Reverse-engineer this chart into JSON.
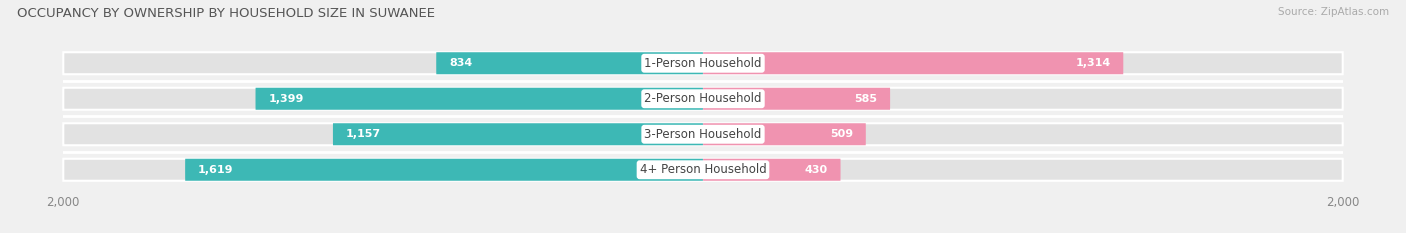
{
  "title": "OCCUPANCY BY OWNERSHIP BY HOUSEHOLD SIZE IN SUWANEE",
  "source": "Source: ZipAtlas.com",
  "categories": [
    "1-Person Household",
    "2-Person Household",
    "3-Person Household",
    "4+ Person Household"
  ],
  "owner_values": [
    834,
    1399,
    1157,
    1619
  ],
  "renter_values": [
    1314,
    585,
    509,
    430
  ],
  "owner_color": "#3db8b5",
  "renter_color": "#f093b0",
  "owner_color_dark": "#2a9d99",
  "renter_color_dark": "#e06090",
  "xlim": 2000,
  "bar_height": 0.62,
  "background_color": "#f0f0f0",
  "row_bg_color": "#e2e2e2",
  "title_fontsize": 9.5,
  "label_fontsize": 8.5,
  "value_fontsize": 8,
  "tick_fontsize": 8.5,
  "legend_fontsize": 8.5,
  "inside_threshold_owner": 400,
  "inside_threshold_renter": 400
}
